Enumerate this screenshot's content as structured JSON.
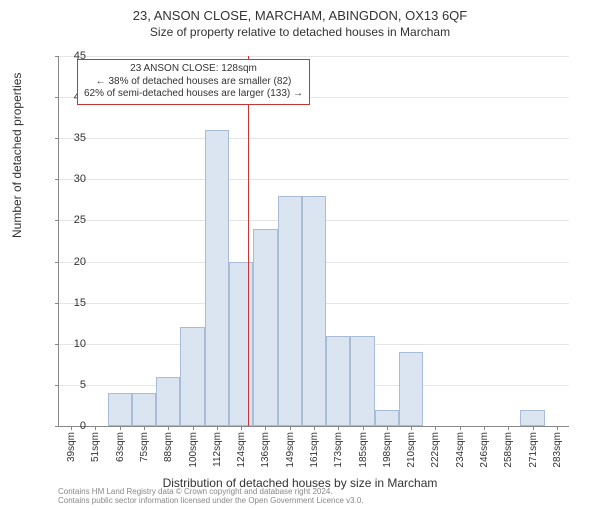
{
  "title": "23, ANSON CLOSE, MARCHAM, ABINGDON, OX13 6QF",
  "subtitle": "Size of property relative to detached houses in Marcham",
  "ylabel": "Number of detached properties",
  "xlabel": "Distribution of detached houses by size in Marcham",
  "annotation": {
    "line1": "23 ANSON CLOSE: 128sqm",
    "line2": "← 38% of detached houses are smaller (82)",
    "line3": "62% of semi-detached houses are larger (133) →"
  },
  "chart": {
    "type": "histogram",
    "ylim": [
      0,
      45
    ],
    "ytick_step": 5,
    "bar_color": "#dbe5f2",
    "bar_border": "#a8bcd6",
    "grid_color": "#e5e5e5",
    "ref_line_color": "#cc3333",
    "ref_line_x": 128,
    "x_categories": [
      "39sqm",
      "51sqm",
      "63sqm",
      "75sqm",
      "88sqm",
      "100sqm",
      "112sqm",
      "124sqm",
      "136sqm",
      "149sqm",
      "161sqm",
      "173sqm",
      "185sqm",
      "198sqm",
      "210sqm",
      "222sqm",
      "234sqm",
      "246sqm",
      "258sqm",
      "271sqm",
      "283sqm"
    ],
    "values": [
      0,
      0,
      4,
      4,
      6,
      12,
      36,
      20,
      24,
      28,
      28,
      11,
      11,
      2,
      9,
      0,
      0,
      0,
      0,
      2,
      0
    ]
  },
  "footer": {
    "line1": "Contains HM Land Registry data © Crown copyright and database right 2024.",
    "line2": "Contains public sector information licensed under the Open Government Licence v3.0."
  }
}
